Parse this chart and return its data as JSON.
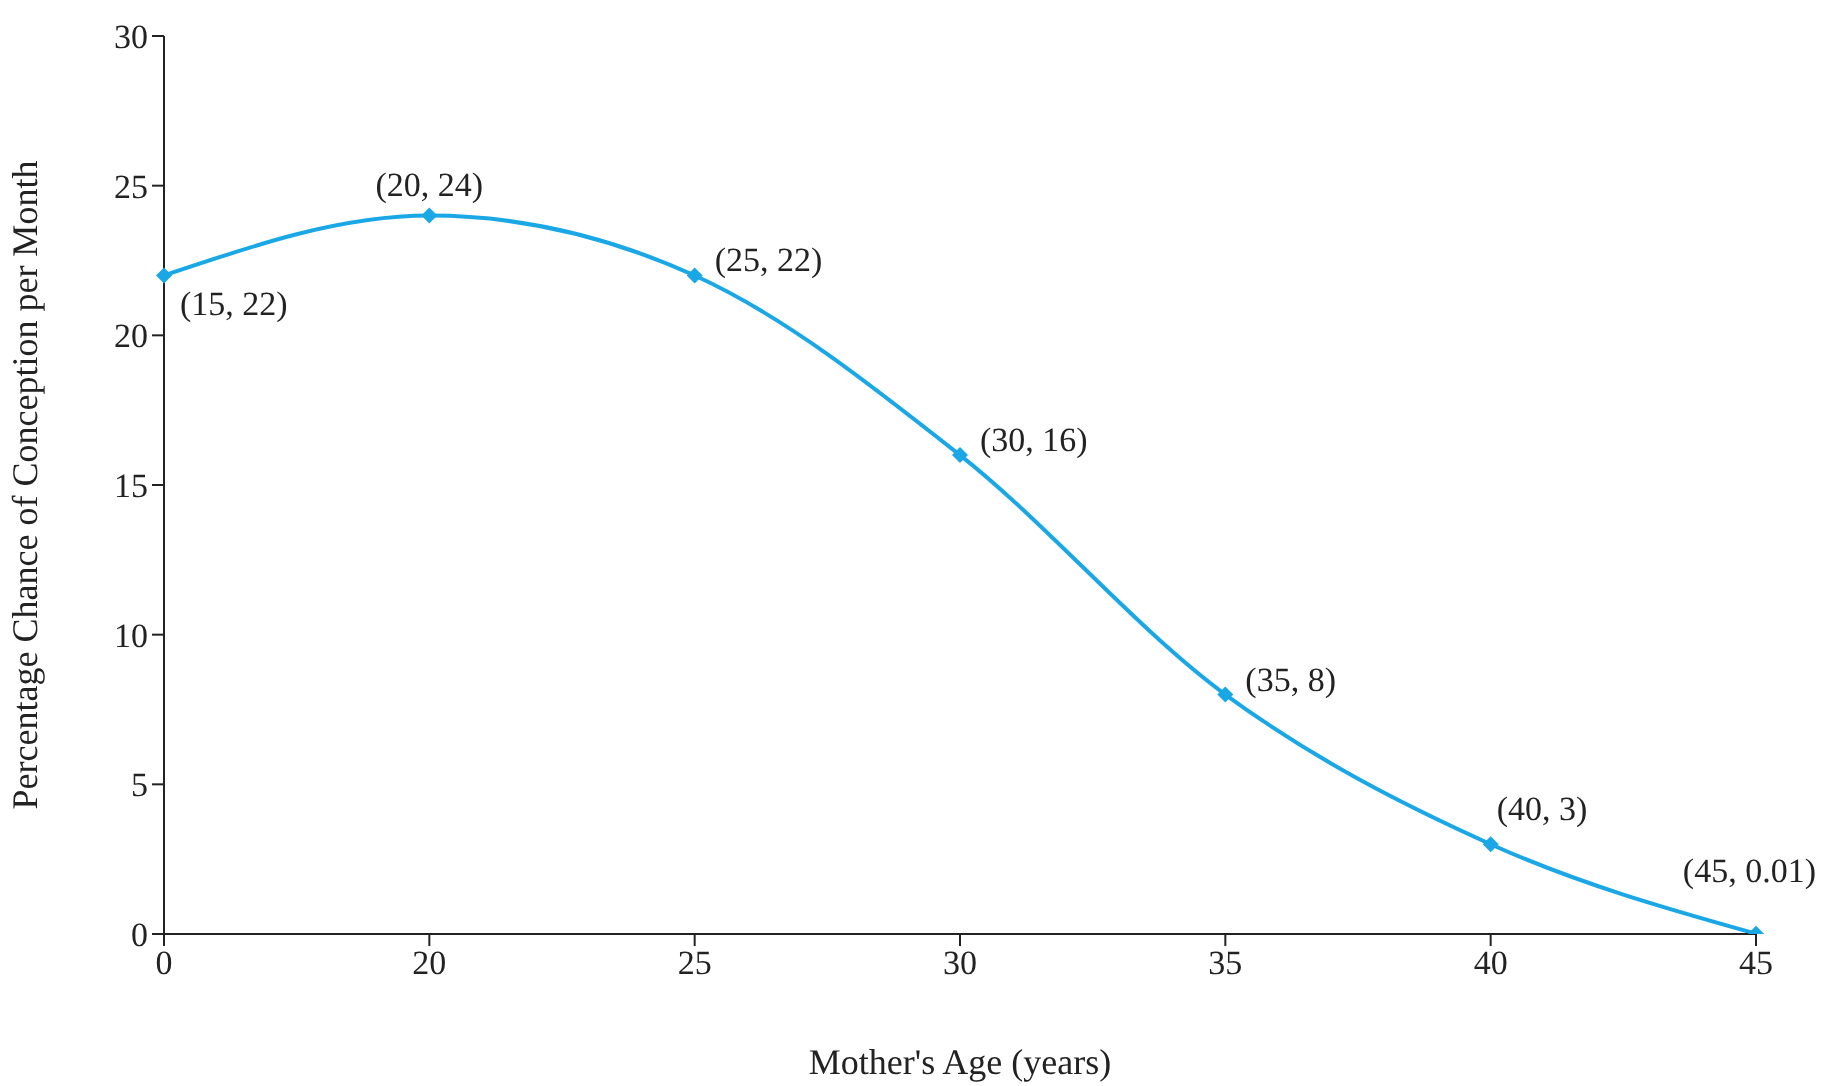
{
  "chart_data": {
    "type": "line",
    "xlabel": "Mother's Age (years)",
    "ylabel": "Percentage Chance of Conception per Month",
    "categories": [
      "0",
      "20",
      "25",
      "30",
      "35",
      "40",
      "45"
    ],
    "values": [
      22,
      24,
      22,
      16,
      8,
      3,
      0.01
    ],
    "value_labels": [
      "(15, 22)",
      "(20, 24)",
      "(25, 22)",
      "(30, 16)",
      "(35, 8)",
      "(40, 3)",
      "(45, 0.01)"
    ],
    "color": "#1aa7e6",
    "marker": "diamond",
    "line_style": "solid",
    "grid": false,
    "legend": false,
    "ylim": [
      0,
      30
    ],
    "yticks": [
      0,
      5,
      10,
      15,
      20,
      25,
      30
    ]
  }
}
